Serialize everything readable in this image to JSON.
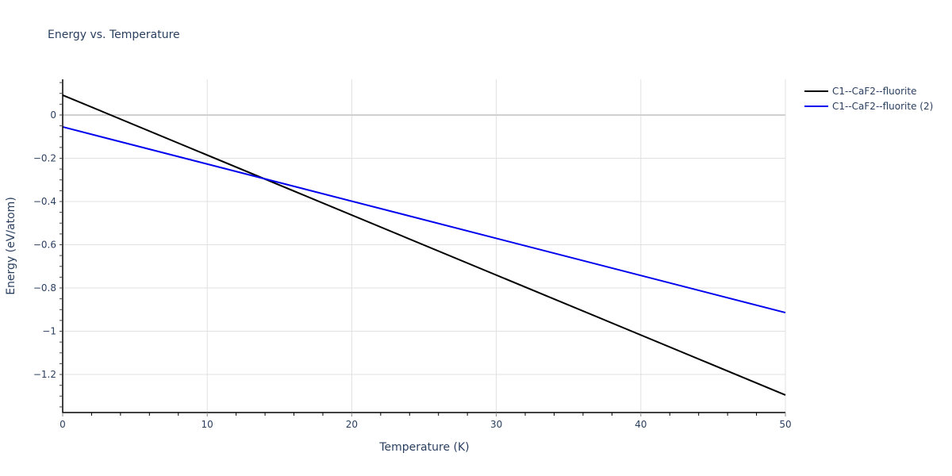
{
  "chart_data": {
    "type": "line",
    "title": "Energy vs. Temperature",
    "xlabel": "Temperature (K)",
    "ylabel": "Energy (eV/atom)",
    "xlim": [
      0,
      50
    ],
    "ylim": [
      -1.376,
      0.165
    ],
    "x_ticks": [
      0,
      10,
      20,
      30,
      40,
      50
    ],
    "x_tick_labels": [
      "0",
      "10",
      "20",
      "30",
      "40",
      "50"
    ],
    "y_ticks": [
      0,
      -0.2,
      -0.4,
      -0.6,
      -0.8,
      -1,
      -1.2
    ],
    "y_tick_labels": [
      "0",
      "−0.2",
      "−0.4",
      "−0.6",
      "−0.8",
      "−1",
      "−1.2"
    ],
    "grid": true,
    "legend_position": "top-right outside",
    "series": [
      {
        "name": "C1--CaF2--fluorite",
        "color": "#000000",
        "x": [
          0,
          50
        ],
        "y": [
          0.092,
          -1.295
        ]
      },
      {
        "name": "C1--CaF2--fluorite (2)",
        "color": "#0000ee",
        "x": [
          0,
          50
        ],
        "y": [
          -0.055,
          -0.914
        ]
      }
    ]
  },
  "legend": {
    "items": [
      {
        "label": "C1--CaF2--fluorite",
        "color": "#000000"
      },
      {
        "label": "C1--CaF2--fluorite (2)",
        "color": "#0000ee"
      }
    ]
  }
}
